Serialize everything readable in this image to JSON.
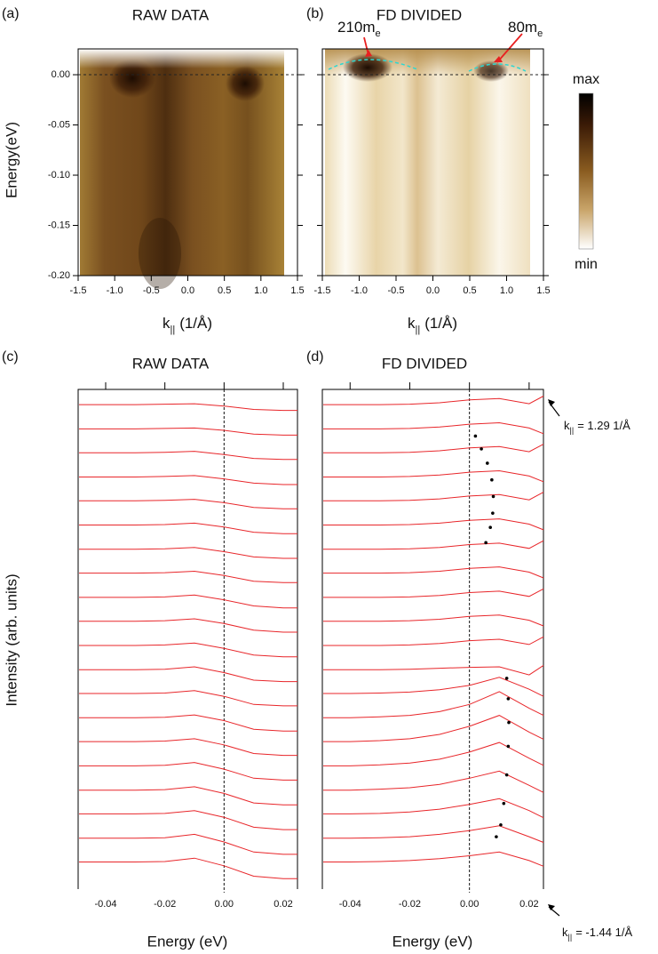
{
  "chart_data": [
    {
      "type": "heatmap",
      "panel": "(a)",
      "title": "RAW DATA",
      "ylabel": "Energy(eV)",
      "xlabel": {
        "main": "k",
        "sub": "||",
        "rest": "(1/Å)"
      },
      "xlim": [
        -1.5,
        1.5
      ],
      "ylim": [
        -0.2,
        0.0257
      ],
      "xticks": [
        -1.5,
        {
          "value": -1,
          "label": "-1.0"
        },
        -0.5,
        {
          "value": 0,
          "label": "0.0"
        },
        0.5,
        {
          "value": 1,
          "label": "1.0"
        },
        1.5
      ],
      "yticks": [
        {
          "value": 0,
          "label": "0.00"
        },
        -0.05,
        {
          "value": -0.1,
          "label": "-0.10"
        },
        -0.15,
        {
          "value": -0.2,
          "label": "-0.20"
        }
      ],
      "ytick_labels": true,
      "hline": 0
    },
    {
      "type": "heatmap",
      "panel": "(b)",
      "title": "FD DIVIDED",
      "xlabel": {
        "main": "k",
        "sub": "||",
        "rest": "(1/Å)"
      },
      "annotations": [
        {
          "main": "210m",
          "sub": "e"
        },
        {
          "main": "80m",
          "sub": "e"
        }
      ],
      "colorbar_labels": [
        "max",
        "min"
      ],
      "xlim": [
        -1.5,
        1.5
      ],
      "ylim": [
        -0.2,
        0.0257
      ],
      "xticks": [
        -1.5,
        {
          "value": -1,
          "label": "-1.0"
        },
        -0.5,
        {
          "value": 0,
          "label": "0.0"
        },
        0.5,
        {
          "value": 1,
          "label": "1.0"
        },
        1.5
      ],
      "yticks": [
        0,
        -0.05,
        -0.1,
        -0.15,
        -0.2
      ],
      "ytick_labels": false,
      "hline": 0
    },
    {
      "type": "line",
      "panel": "(c)",
      "title": "RAW DATA",
      "ylabel": "Intensity (arb. units)",
      "xlabel": "Energy (eV)",
      "xlim": [
        -0.0493,
        0.0248
      ],
      "ylim": [
        -3,
        102
      ],
      "xticks": [
        -0.04,
        -0.02,
        {
          "value": 0,
          "label": "0.00"
        },
        0.02
      ],
      "vline": 0,
      "color": "#e8262a",
      "x": [
        -0.049,
        -0.04,
        -0.03,
        -0.02,
        -0.01,
        0,
        0.01,
        0.02,
        0.0248
      ],
      "series": [
        {
          "values": [
            98.8,
            98.8,
            98.8,
            98.9,
            99.0,
            98.5,
            97.8,
            97.6,
            97.6
          ]
        },
        {
          "values": [
            93.7,
            93.7,
            93.7,
            93.8,
            93.9,
            93.4,
            92.6,
            92.4,
            92.4
          ]
        },
        {
          "values": [
            88.7,
            88.7,
            88.7,
            88.8,
            89.0,
            88.3,
            87.5,
            87.3,
            87.3
          ]
        },
        {
          "values": [
            83.6,
            83.6,
            83.6,
            83.7,
            83.9,
            83.2,
            82.3,
            82.0,
            82.0
          ]
        },
        {
          "values": [
            78.6,
            78.6,
            78.6,
            78.7,
            78.9,
            78.2,
            77.2,
            76.9,
            76.9
          ]
        },
        {
          "values": [
            73.5,
            73.5,
            73.5,
            73.6,
            73.9,
            73.1,
            72.0,
            71.7,
            71.7
          ]
        },
        {
          "values": [
            68.4,
            68.4,
            68.4,
            68.5,
            68.8,
            67.9,
            66.8,
            66.5,
            66.5
          ]
        },
        {
          "values": [
            63.4,
            63.4,
            63.4,
            63.5,
            63.8,
            62.9,
            61.7,
            61.4,
            61.4
          ]
        },
        {
          "values": [
            58.3,
            58.3,
            58.3,
            58.4,
            58.8,
            57.8,
            56.5,
            56.1,
            56.1
          ]
        },
        {
          "values": [
            53.3,
            53.3,
            53.3,
            53.4,
            53.8,
            52.8,
            51.4,
            51.0,
            51.0
          ]
        },
        {
          "values": [
            48.2,
            48.2,
            48.2,
            48.3,
            48.7,
            47.6,
            46.2,
            45.8,
            45.8
          ]
        },
        {
          "values": [
            43.1,
            43.1,
            43.1,
            43.2,
            43.7,
            42.5,
            40.9,
            40.6,
            40.6
          ]
        },
        {
          "values": [
            38.1,
            38.1,
            38.1,
            38.2,
            38.7,
            37.5,
            35.8,
            35.5,
            35.5
          ]
        },
        {
          "values": [
            33.0,
            33.0,
            33.0,
            33.1,
            33.6,
            32.4,
            30.6,
            30.2,
            30.2
          ]
        },
        {
          "values": [
            28.0,
            28.0,
            28.0,
            28.1,
            28.6,
            27.3,
            25.5,
            25.1,
            25.1
          ]
        },
        {
          "values": [
            22.9,
            22.9,
            22.9,
            23.0,
            23.6,
            22.2,
            20.3,
            19.9,
            19.9
          ]
        },
        {
          "values": [
            17.8,
            17.8,
            17.8,
            17.9,
            18.5,
            17.1,
            15.1,
            14.7,
            14.7
          ]
        },
        {
          "values": [
            12.8,
            12.8,
            12.8,
            12.9,
            13.5,
            12.1,
            10.0,
            9.5,
            9.5
          ]
        },
        {
          "values": [
            7.7,
            7.7,
            7.7,
            7.8,
            8.5,
            6.9,
            4.8,
            4.3,
            4.3
          ]
        },
        {
          "values": [
            2.7,
            2.7,
            2.7,
            2.8,
            3.5,
            1.9,
            -0.3,
            -0.8,
            -0.8
          ]
        }
      ]
    },
    {
      "type": "line",
      "panel": "(d)",
      "title": "FD DIVIDED",
      "xlabel": "Energy (eV)",
      "annotations": [
        {
          "main": "k",
          "sub": "||",
          "rest": "= 1.29 1/Å"
        },
        {
          "main": "k",
          "sub": "||",
          "rest": "= -1.44 1/Å"
        }
      ],
      "xlim": [
        -0.0493,
        0.0248
      ],
      "ylim": [
        -3,
        102
      ],
      "xticks": [
        -0.04,
        -0.02,
        {
          "value": 0,
          "label": "0.00"
        },
        0.02
      ],
      "vline": 0,
      "color": "#e8262a",
      "x": [
        -0.049,
        -0.04,
        -0.03,
        -0.02,
        -0.01,
        0,
        0.01,
        0.02,
        0.0248
      ],
      "series": [
        {
          "values": [
            98.8,
            98.8,
            98.8,
            98.9,
            99.2,
            99.8,
            100.1,
            99.0,
            100.6
          ]
        },
        {
          "values": [
            93.7,
            93.7,
            93.7,
            93.8,
            94.1,
            94.7,
            95.0,
            93.9,
            92.7
          ]
        },
        {
          "values": [
            88.7,
            88.7,
            88.7,
            88.8,
            89.1,
            89.7,
            90.0,
            88.9,
            90.5
          ]
        },
        {
          "values": [
            83.6,
            83.6,
            83.6,
            83.7,
            84.0,
            84.6,
            84.9,
            83.8,
            82.6
          ]
        },
        {
          "values": [
            78.6,
            78.6,
            78.6,
            78.7,
            79.0,
            79.6,
            79.9,
            78.8,
            80.4
          ]
        },
        {
          "values": [
            73.5,
            73.5,
            73.5,
            73.6,
            73.9,
            74.5,
            74.8,
            73.7,
            72.5
          ]
        },
        {
          "values": [
            68.4,
            68.4,
            68.4,
            68.5,
            68.8,
            69.4,
            69.7,
            68.6,
            70.2
          ]
        },
        {
          "values": [
            63.4,
            63.4,
            63.4,
            63.5,
            63.8,
            64.4,
            64.7,
            63.6,
            62.4
          ]
        },
        {
          "values": [
            58.3,
            58.3,
            58.3,
            58.4,
            58.7,
            59.3,
            59.6,
            58.5,
            60.1
          ]
        },
        {
          "values": [
            53.3,
            53.3,
            53.3,
            53.4,
            53.7,
            54.3,
            54.6,
            53.5,
            52.3
          ]
        },
        {
          "values": [
            48.2,
            48.2,
            48.2,
            48.3,
            48.6,
            49.2,
            49.5,
            48.4,
            50.0
          ]
        },
        {
          "values": [
            43.1,
            43.1,
            43.1,
            43.2,
            43.4,
            43.6,
            43.7,
            42.0,
            44.0
          ]
        },
        {
          "values": [
            38.1,
            38.1,
            38.2,
            38.4,
            38.9,
            39.8,
            41.5,
            39.0,
            37.5
          ]
        },
        {
          "values": [
            33.0,
            33.0,
            33.2,
            33.5,
            34.3,
            35.8,
            38.5,
            35.0,
            33.5
          ]
        },
        {
          "values": [
            28.0,
            28.0,
            28.2,
            28.6,
            29.5,
            31.2,
            33.5,
            30.0,
            28.5
          ]
        },
        {
          "values": [
            22.9,
            22.9,
            23.1,
            23.5,
            24.3,
            25.8,
            27.8,
            24.5,
            23.0
          ]
        },
        {
          "values": [
            17.8,
            17.8,
            18.0,
            18.3,
            19.0,
            20.3,
            21.8,
            18.8,
            17.3
          ]
        },
        {
          "values": [
            12.8,
            12.8,
            12.9,
            13.2,
            13.8,
            14.8,
            16.0,
            13.5,
            12.0
          ]
        },
        {
          "values": [
            7.7,
            7.7,
            7.8,
            8.0,
            8.5,
            9.3,
            10.3,
            8.0,
            6.8
          ]
        },
        {
          "values": [
            2.7,
            2.7,
            2.8,
            3.0,
            3.4,
            4.0,
            4.8,
            3.0,
            1.8
          ]
        }
      ],
      "markers": [
        {
          "color": "#000000",
          "x": [
            0.002,
            0.004,
            0.006,
            0.0075,
            0.008,
            0.0078,
            0.007,
            0.0055
          ],
          "y": [
            92.2,
            89.5,
            86.5,
            83,
            79.5,
            76,
            73,
            69.8
          ]
        },
        {
          "color": "#000000",
          "x": [
            0.0125,
            0.013,
            0.0132,
            0.013,
            0.0125,
            0.0115,
            0.0105,
            0.009
          ],
          "y": [
            41.3,
            37,
            32,
            27,
            21,
            15,
            10.5,
            8.0
          ]
        }
      ]
    }
  ]
}
